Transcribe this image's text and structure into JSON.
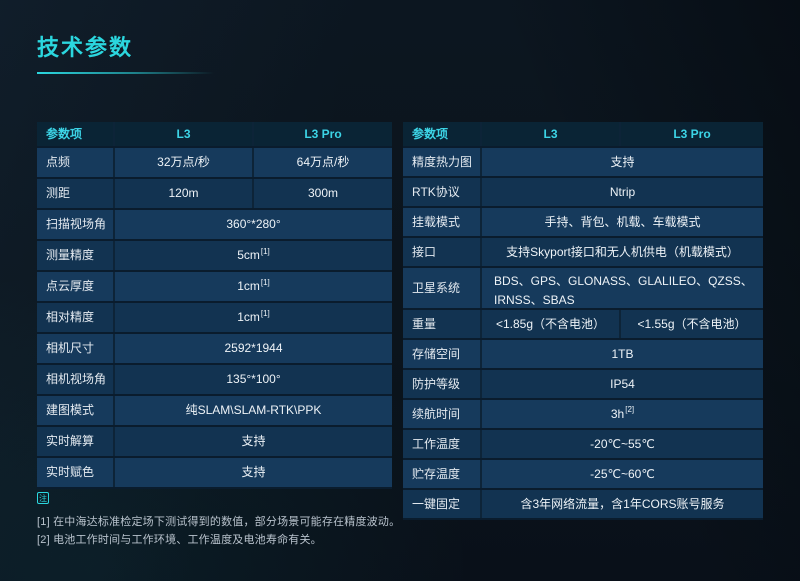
{
  "page": {
    "title": "技术参数",
    "note_badge": "注"
  },
  "colors": {
    "accent_cyan": "#2bd7df",
    "header_bg": "#0a2435",
    "row_bg_odd": "#163a5c",
    "row_bg_even": "#123351",
    "page_bg": "#0b141c"
  },
  "tables": [
    {
      "id": "left",
      "columns": [
        "参数项",
        "L3",
        "L3 Pro"
      ],
      "rows": [
        {
          "label": "点频",
          "values": [
            "32万点/秒",
            "64万点/秒"
          ]
        },
        {
          "label": "测距",
          "values": [
            "120m",
            "300m"
          ]
        },
        {
          "label": "扫描视场角",
          "values": [
            "360°*280°"
          ]
        },
        {
          "label": "测量精度",
          "values": [
            {
              "text": "5cm",
              "sup": "[1]"
            }
          ]
        },
        {
          "label": "点云厚度",
          "values": [
            {
              "text": "1cm",
              "sup": "[1]"
            }
          ]
        },
        {
          "label": "相对精度",
          "values": [
            {
              "text": "1cm",
              "sup": "[1]"
            }
          ]
        },
        {
          "label": "相机尺寸",
          "values": [
            "2592*1944"
          ]
        },
        {
          "label": "相机视场角",
          "values": [
            "135°*100°"
          ]
        },
        {
          "label": "建图模式",
          "values": [
            "纯SLAM\\SLAM-RTK\\PPK"
          ]
        },
        {
          "label": "实时解算",
          "values": [
            "支持"
          ]
        },
        {
          "label": "实时赋色",
          "values": [
            "支持"
          ]
        }
      ]
    },
    {
      "id": "right",
      "columns": [
        "参数项",
        "L3",
        "L3 Pro"
      ],
      "rows": [
        {
          "label": "精度热力图",
          "values": [
            "支持"
          ]
        },
        {
          "label": "RTK协议",
          "values": [
            "Ntrip"
          ]
        },
        {
          "label": "挂载模式",
          "values": [
            "手持、背包、机载、车载模式"
          ]
        },
        {
          "label": "接口",
          "values": [
            "支持Skyport接口和无人机供电（机载模式）"
          ]
        },
        {
          "label": "卫星系统",
          "values": [
            "BDS、GPS、GLONASS、GLALILEO、QZSS、IRNSS、SBAS"
          ],
          "multiline": true
        },
        {
          "label": "重量",
          "values": [
            "<1.85g（不含电池）",
            "<1.55g（不含电池）"
          ]
        },
        {
          "label": "存储空间",
          "values": [
            "1TB"
          ]
        },
        {
          "label": "防护等级",
          "values": [
            "IP54"
          ]
        },
        {
          "label": "续航时间",
          "values": [
            {
              "text": "3h",
              "sup": "[2]"
            }
          ]
        },
        {
          "label": "工作温度",
          "values": [
            "-20℃~55℃"
          ]
        },
        {
          "label": "贮存温度",
          "values": [
            "-25℃~60℃"
          ]
        },
        {
          "label": "一键固定",
          "values": [
            "含3年网络流量，含1年CORS账号服务"
          ]
        }
      ]
    }
  ],
  "footnotes": [
    "[1] 在中海达标准检定场下测试得到的数值，部分场景可能存在精度波动。",
    "[2] 电池工作时间与工作环境、工作温度及电池寿命有关。"
  ]
}
